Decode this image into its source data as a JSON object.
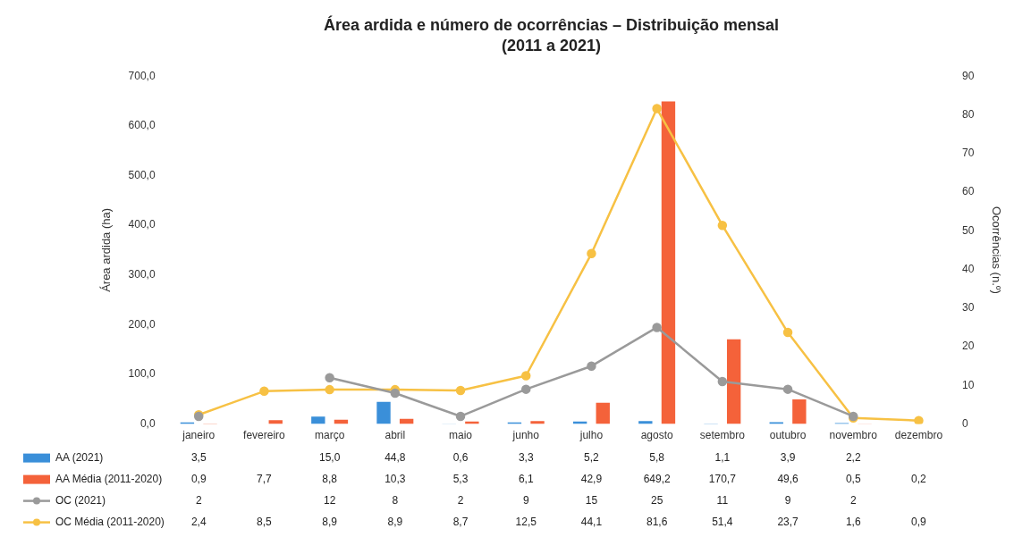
{
  "chart_data": {
    "type": "bar",
    "title": "Área ardida e número de ocorrências – Distribuição mensal",
    "subtitle": "(2011 a 2021)",
    "ylabel": "Área ardida (ha)",
    "y2label": "Ocorrências (n.º)",
    "categories": [
      "janeiro",
      "fevereiro",
      "março",
      "abril",
      "maio",
      "junho",
      "julho",
      "agosto",
      "setembro",
      "outubro",
      "novembro",
      "dezembro"
    ],
    "series": [
      {
        "name": "AA (2021)",
        "color": "#3a8fd9",
        "axis": "y",
        "values": [
          3.5,
          null,
          15.0,
          44.8,
          0.6,
          3.3,
          5.2,
          5.8,
          1.1,
          3.9,
          2.2,
          null
        ],
        "value_labels": [
          "3,5",
          null,
          "15,0",
          "44,8",
          "0,6",
          "3,3",
          "5,2",
          "5,8",
          "1,1",
          "3,9",
          "2,2",
          null
        ]
      },
      {
        "name": "AA Média (2011-2020)",
        "color": "#f4623a",
        "axis": "y",
        "values": [
          0.9,
          7.7,
          8.8,
          10.3,
          5.3,
          6.1,
          42.9,
          649.2,
          170.7,
          49.6,
          0.5,
          0.2
        ],
        "value_labels": [
          "0,9",
          "7,7",
          "8,8",
          "10,3",
          "5,3",
          "6,1",
          "42,9",
          "649,2",
          "170,7",
          "49,6",
          "0,5",
          "0,2"
        ]
      },
      {
        "name": "OC (2021)",
        "type": "line",
        "color": "#9a9a9a",
        "axis": "y2",
        "values": [
          2,
          null,
          12,
          8,
          2,
          9,
          15,
          25,
          11,
          9,
          2,
          null
        ],
        "value_labels": [
          "2",
          null,
          "12",
          "8",
          "2",
          "9",
          "15",
          "25",
          "11",
          "9",
          "2",
          null
        ]
      },
      {
        "name": "OC Média (2011-2020)",
        "type": "line",
        "color": "#f7c144",
        "axis": "y2",
        "values": [
          2.4,
          8.5,
          8.9,
          8.9,
          8.7,
          12.5,
          44.1,
          81.6,
          51.4,
          23.7,
          1.6,
          0.9
        ],
        "value_labels": [
          "2,4",
          "8,5",
          "8,9",
          "8,9",
          "8,7",
          "12,5",
          "44,1",
          "81,6",
          "51,4",
          "23,7",
          "1,6",
          "0,9"
        ]
      }
    ],
    "ylim": [
      0,
      700
    ],
    "yticks": [
      {
        "value": 0,
        "label": "0,0"
      },
      {
        "value": 100,
        "label": "100,0"
      },
      {
        "value": 200,
        "label": "200,0"
      },
      {
        "value": 300,
        "label": "300,0"
      },
      {
        "value": 400,
        "label": "400,0"
      },
      {
        "value": 500,
        "label": "500,0"
      },
      {
        "value": 600,
        "label": "600,0"
      },
      {
        "value": 700,
        "label": "700,0"
      }
    ],
    "y2lim": [
      0,
      90
    ],
    "y2ticks": [
      0,
      10,
      20,
      30,
      40,
      50,
      60,
      70,
      80,
      90
    ],
    "grid": false,
    "legend": "bottom",
    "marker": "circle",
    "line_style": "solid"
  }
}
